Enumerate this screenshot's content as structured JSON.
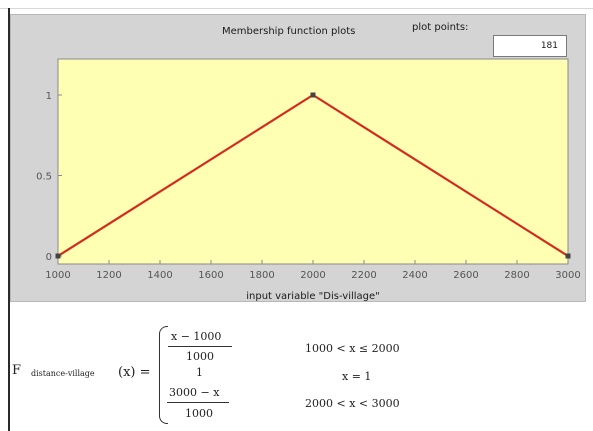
{
  "header": {
    "title": "Membership function plots",
    "plot_points_label": "plot points:",
    "plot_points_value": "181"
  },
  "chart_data": {
    "type": "line",
    "x": [
      1000,
      2000,
      3000
    ],
    "series": [
      {
        "values": [
          0,
          1,
          0
        ],
        "color": "#d42a1e"
      }
    ],
    "xlabel": "input variable \"Dis-village\"",
    "ylabel": "",
    "xlim": [
      1000,
      3000
    ],
    "ylim": [
      0,
      1
    ],
    "xticks": [
      1000,
      1200,
      1400,
      1600,
      1800,
      2000,
      2200,
      2400,
      2600,
      2800,
      3000
    ],
    "yticks": [
      0,
      0.5,
      1
    ],
    "ytick_labels": [
      "0",
      "0.5",
      "1"
    ],
    "grid": false,
    "background": "#ffffb4"
  },
  "formula": {
    "fn_prefix": "F",
    "fn_subscript": "distance-village",
    "fn_arg": "(x) =",
    "case1_num": "x − 1000",
    "case1_den": "1000",
    "case2_val": "1",
    "case3_num": "3000 − x",
    "case3_den": "1000",
    "cond1": "1000 < x ≤ 2000",
    "cond2": "x = 1",
    "cond3": "2000 < x < 3000"
  }
}
